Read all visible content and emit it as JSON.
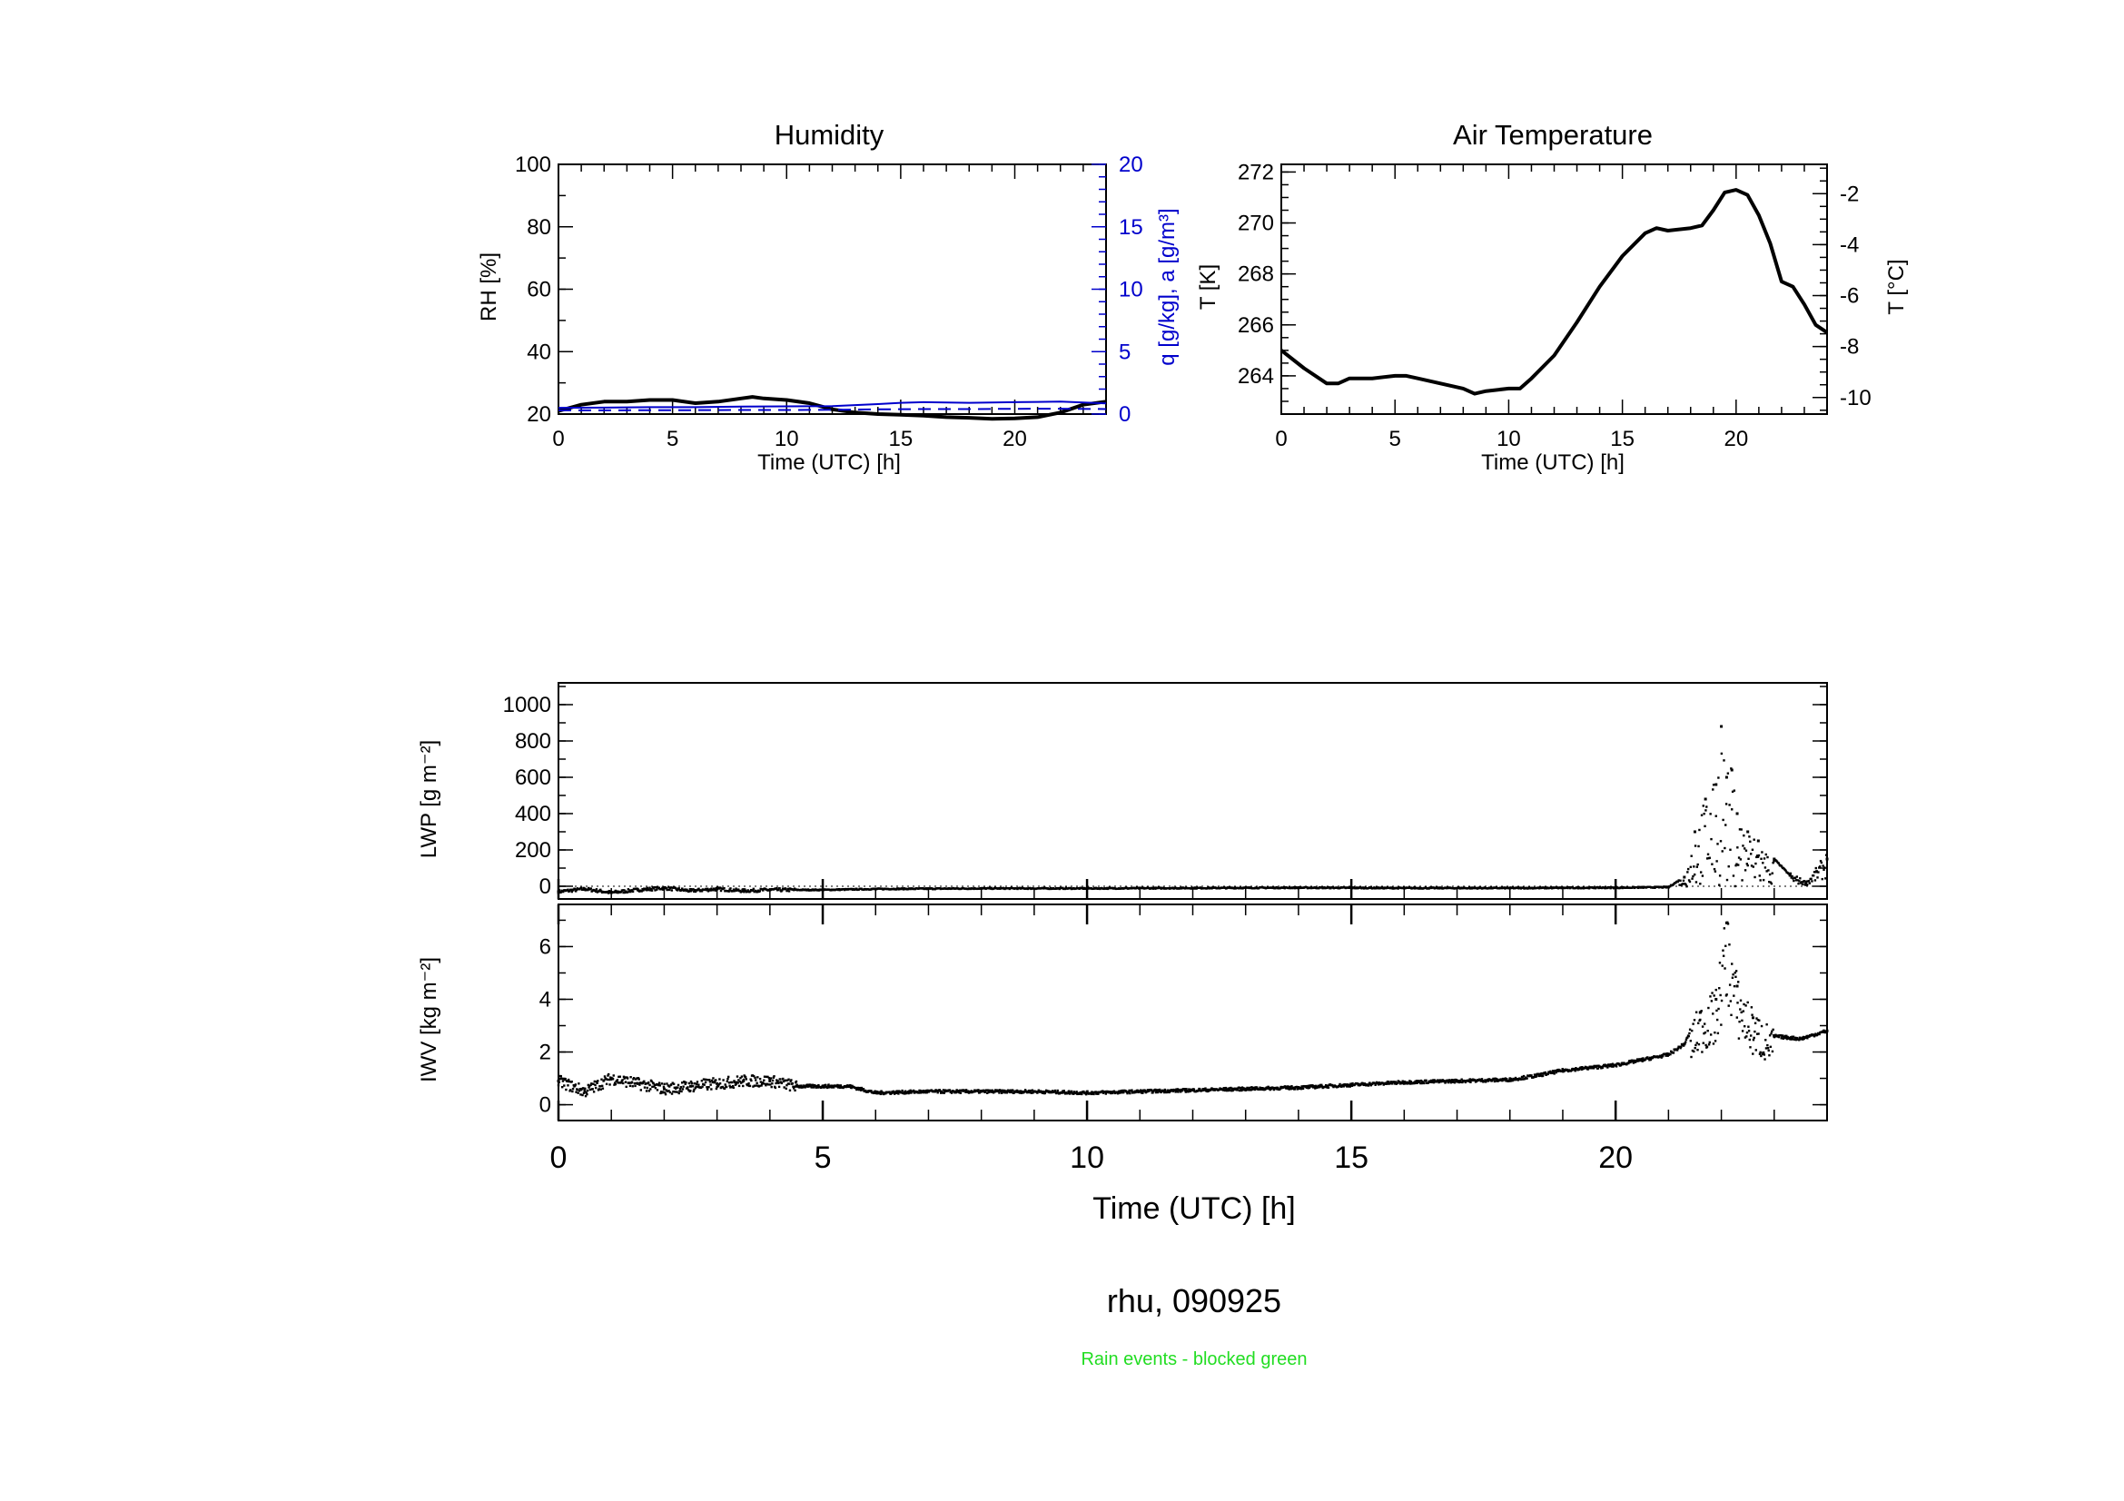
{
  "figure": {
    "footer": "rhu, 090925",
    "note": "Rain events - blocked green",
    "colors": {
      "ink": "#000000",
      "blue": "#0000cc",
      "green": "#22dd22"
    }
  },
  "chart_data": [
    {
      "id": "humidity",
      "type": "line",
      "title": "Humidity",
      "xlabel": "Time (UTC) [h]",
      "ylabel": "RH [%]",
      "y2label": "q [g/kg], a [g/m³]",
      "xlim": [
        0,
        24
      ],
      "ylim": [
        20,
        100
      ],
      "y2lim": [
        0,
        20
      ],
      "xticks": [
        0,
        5,
        10,
        15,
        20
      ],
      "yticks": [
        20,
        40,
        60,
        80,
        100
      ],
      "y2ticks": [
        0,
        5,
        10,
        15,
        20
      ],
      "series": [
        {
          "name": "RH",
          "axis": "left",
          "color": "#000000",
          "style": "solid",
          "x": [
            0,
            1,
            2,
            3,
            4,
            5,
            6,
            7,
            8,
            8.5,
            9,
            10,
            11,
            12,
            13,
            14,
            15,
            16,
            17,
            18,
            19,
            20,
            21,
            22,
            23,
            24
          ],
          "y": [
            21,
            23,
            24,
            24,
            24.5,
            24.5,
            23.5,
            24,
            25,
            25.5,
            25,
            24.5,
            23.5,
            21.5,
            20.5,
            20,
            19.8,
            19.5,
            19,
            18.8,
            18.5,
            18.6,
            19,
            20.5,
            23,
            24
          ]
        },
        {
          "name": "q",
          "axis": "right",
          "color": "#0000cc",
          "style": "solid",
          "x": [
            0,
            2,
            4,
            6,
            8,
            10,
            12,
            14,
            15,
            16,
            18,
            20,
            22,
            24
          ],
          "y": [
            0.5,
            0.52,
            0.55,
            0.55,
            0.6,
            0.62,
            0.63,
            0.8,
            0.9,
            0.95,
            0.9,
            0.95,
            1.0,
            0.85
          ]
        },
        {
          "name": "a",
          "axis": "right",
          "color": "#0000cc",
          "style": "dashed",
          "x": [
            0,
            2,
            4,
            6,
            8,
            10,
            12,
            14,
            16,
            18,
            20,
            22,
            24
          ],
          "y": [
            0.3,
            0.3,
            0.31,
            0.31,
            0.33,
            0.33,
            0.34,
            0.38,
            0.4,
            0.4,
            0.42,
            0.43,
            0.4
          ]
        }
      ]
    },
    {
      "id": "air_temperature",
      "type": "line",
      "title": "Air Temperature",
      "xlabel": "Time (UTC) [h]",
      "ylabel": "T [K]",
      "y2label": "T [°C]",
      "xlim": [
        0,
        24
      ],
      "ylim": [
        262.5,
        272.3
      ],
      "y2lim": [
        -10.65,
        -0.85
      ],
      "xticks": [
        0,
        5,
        10,
        15,
        20
      ],
      "yticks": [
        264,
        266,
        268,
        270,
        272
      ],
      "y2ticks": [
        -10,
        -8,
        -6,
        -4,
        -2
      ],
      "series": [
        {
          "name": "T",
          "axis": "left",
          "color": "#000000",
          "style": "solid",
          "x": [
            0,
            1,
            2,
            2.5,
            3,
            4,
            5,
            5.5,
            6,
            7,
            8,
            8.5,
            9,
            10,
            10.5,
            11,
            12,
            13,
            14,
            15,
            16,
            16.5,
            17,
            18,
            18.5,
            19,
            19.5,
            20,
            20.5,
            21,
            21.5,
            22,
            22.5,
            23,
            23.5,
            24
          ],
          "y": [
            265,
            264.3,
            263.7,
            263.7,
            263.9,
            263.9,
            264,
            264,
            263.9,
            263.7,
            263.5,
            263.3,
            263.4,
            263.5,
            263.5,
            263.9,
            264.8,
            266.1,
            267.5,
            268.7,
            269.6,
            269.8,
            269.7,
            269.8,
            269.9,
            270.5,
            271.2,
            271.3,
            271.1,
            270.3,
            269.2,
            267.7,
            267.5,
            266.8,
            266,
            265.7
          ]
        }
      ]
    },
    {
      "id": "lwp",
      "type": "scatter",
      "ylabel": "LWP [g m⁻²]",
      "xlim": [
        0,
        24
      ],
      "ylim": [
        -70,
        1120
      ],
      "yticks": [
        0,
        200,
        400,
        600,
        800,
        1000
      ],
      "reference_line": 0,
      "series": [
        {
          "name": "LWP",
          "color": "#000000",
          "x": [
            0,
            0.5,
            1,
            1.5,
            2,
            2.5,
            3,
            3.5,
            4,
            5,
            6,
            8,
            10,
            12,
            14,
            16,
            18,
            20,
            21,
            21.3,
            21.5,
            21.7,
            21.9,
            22.0,
            22.1,
            22.2,
            22.3,
            22.5,
            22.7,
            23.0,
            23.3,
            23.6,
            23.8,
            24
          ],
          "y": [
            -30,
            -15,
            -35,
            -20,
            -10,
            -25,
            -15,
            -25,
            -20,
            -20,
            -15,
            -12,
            -12,
            -10,
            -8,
            -10,
            -10,
            -8,
            -5,
            50,
            300,
            480,
            560,
            880,
            600,
            640,
            400,
            300,
            250,
            150,
            60,
            20,
            80,
            150
          ]
        }
      ]
    },
    {
      "id": "iwv",
      "type": "scatter",
      "ylabel": "IWV [kg m⁻²]",
      "xlabel": "Time (UTC) [h]",
      "xlim": [
        0,
        24
      ],
      "ylim": [
        -0.6,
        7.6
      ],
      "xticks": [
        0,
        5,
        10,
        15,
        20
      ],
      "yticks": [
        0,
        2,
        4,
        6
      ],
      "series": [
        {
          "name": "IWV",
          "color": "#000000",
          "x": [
            0,
            0.5,
            1,
            1.5,
            2,
            2.5,
            3,
            3.5,
            4,
            4.5,
            5,
            5.5,
            6,
            7,
            8,
            9,
            10,
            11,
            12,
            13,
            14,
            15,
            16,
            17,
            18,
            18.5,
            19,
            19.5,
            20,
            20.5,
            21,
            21.3,
            21.6,
            21.9,
            22.1,
            22.3,
            22.6,
            23,
            23.5,
            24
          ],
          "y": [
            0.9,
            0.5,
            1.0,
            0.8,
            0.6,
            0.7,
            0.8,
            0.9,
            0.9,
            0.7,
            0.7,
            0.7,
            0.45,
            0.5,
            0.5,
            0.5,
            0.45,
            0.5,
            0.55,
            0.6,
            0.65,
            0.75,
            0.85,
            0.9,
            0.95,
            1.1,
            1.3,
            1.4,
            1.5,
            1.7,
            1.9,
            2.3,
            3.5,
            4.0,
            6.9,
            4.5,
            3.3,
            2.6,
            2.5,
            2.8
          ]
        }
      ]
    }
  ]
}
